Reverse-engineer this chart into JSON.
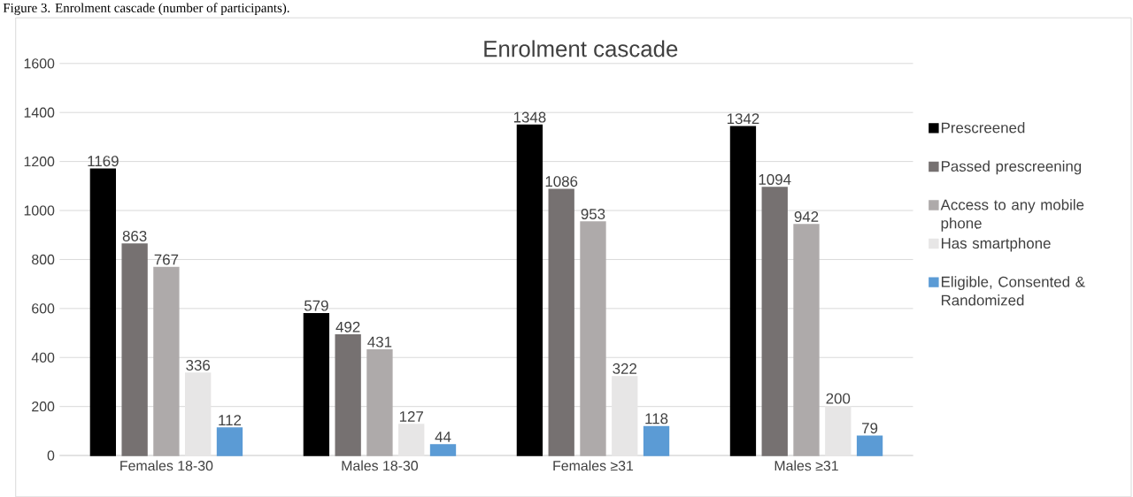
{
  "chart_data": {
    "type": "bar",
    "title": "Enrolment cascade",
    "annotations": [
      "Figure 3. Enrolment cascade (number of participants)."
    ],
    "categories": [
      "Females 18-30",
      "Males 18-30",
      "Females ≥31",
      "Males ≥31"
    ],
    "series": [
      {
        "name": "Prescreened",
        "color": "#000000",
        "values": [
          1169,
          579,
          1348,
          1342
        ]
      },
      {
        "name": "Passed prescreening",
        "color": "#767171",
        "values": [
          863,
          492,
          1086,
          1094
        ]
      },
      {
        "name": "Access to any mobile phone",
        "color": "#aeaaaa",
        "values": [
          767,
          431,
          953,
          942
        ]
      },
      {
        "name": "Has smartphone",
        "color": "#e7e6e6",
        "values": [
          336,
          127,
          322,
          200
        ]
      },
      {
        "name": "Eligible, Consented & Randomized",
        "color": "#5b9bd5",
        "values": [
          112,
          44,
          118,
          79
        ]
      }
    ],
    "ylim": [
      0,
      1600
    ],
    "yticks": [
      0,
      200,
      400,
      600,
      800,
      1000,
      1200,
      1400,
      1600
    ],
    "grid": "y",
    "legend": "right",
    "data_labels": true
  }
}
